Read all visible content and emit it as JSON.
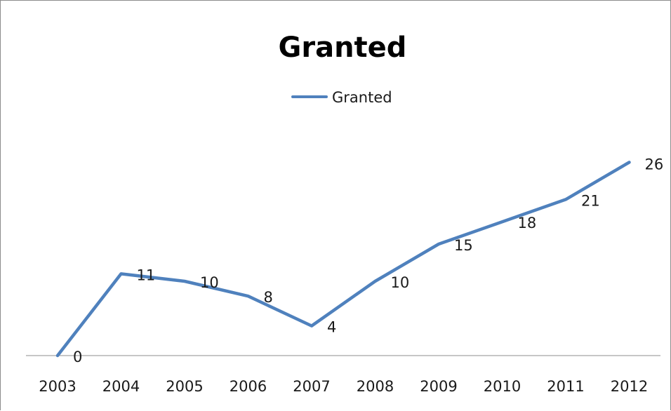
{
  "chart_data": {
    "type": "line",
    "title": "Granted",
    "xlabel": "",
    "ylabel": "",
    "categories": [
      "2003",
      "2004",
      "2005",
      "2006",
      "2007",
      "2008",
      "2009",
      "2010",
      "2011",
      "2012"
    ],
    "series": [
      {
        "name": "Granted",
        "values": [
          0,
          11,
          10,
          8,
          4,
          10,
          15,
          18,
          21,
          26
        ],
        "color": "#4f81bd"
      }
    ],
    "ylim": [
      0,
      30
    ],
    "grid": false,
    "legend_position": "top-center",
    "data_labels": true
  }
}
